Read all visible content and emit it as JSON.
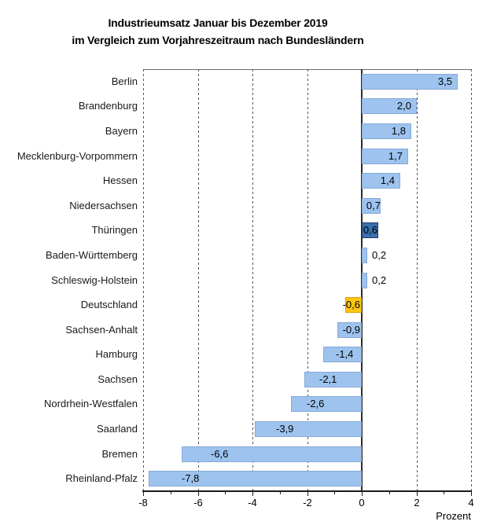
{
  "title": {
    "line1": "Industrieumsatz Januar bis Dezember 2019",
    "line2": "im Vergleich zum Vorjahreszeitraum nach Bundesländern"
  },
  "chart_data": {
    "type": "bar",
    "orientation": "horizontal",
    "title": "Industrieumsatz Januar bis Dezember 2019 im Vergleich zum Vorjahreszeitraum nach Bundesländern",
    "xlabel": "Prozent",
    "xlim": [
      -8,
      4
    ],
    "xticks": [
      -8,
      -6,
      -4,
      -2,
      0,
      2,
      4
    ],
    "xtick_labels": [
      "-8",
      "-6",
      "-4",
      "-2",
      "0",
      "2",
      "4"
    ],
    "minor_xticks": [
      -7,
      -5,
      -3,
      -1,
      1,
      3
    ],
    "grid": "vertical dashed lines at major ticks, solid vertical line at zero",
    "legend": "none",
    "categories": [
      "Berlin",
      "Brandenburg",
      "Bayern",
      "Mecklenburg-Vorpommern",
      "Hessen",
      "Niedersachsen",
      "Thüringen",
      "Baden-Württemberg",
      "Schleswig-Holstein",
      "Deutschland",
      "Sachsen-Anhalt",
      "Hamburg",
      "Sachsen",
      "Nordrhein-Westfalen",
      "Saarland",
      "Bremen",
      "Rheinland-Pfalz"
    ],
    "values": [
      3.5,
      2.0,
      1.8,
      1.7,
      1.4,
      0.7,
      0.6,
      0.2,
      0.2,
      -0.6,
      -0.9,
      -1.4,
      -2.1,
      -2.6,
      -3.9,
      -6.6,
      -7.8
    ],
    "value_labels": [
      "3,5",
      "2,0",
      "1,8",
      "1,7",
      "1,4",
      "0,7",
      "0,6",
      "0,2",
      "0,2",
      "-0,6",
      "-0,9",
      "-1,4",
      "-2,1",
      "-2,6",
      "-3,9",
      "-6,6",
      "-7,8"
    ],
    "color_roles": [
      "default",
      "default",
      "default",
      "default",
      "default",
      "default",
      "dark",
      "default",
      "default",
      "yellow",
      "default",
      "default",
      "default",
      "default",
      "default",
      "default",
      "default"
    ]
  },
  "colors": {
    "bar_fill": "#9DC3EE",
    "bar_border": "#86A9D9",
    "highlight_dark_fill": "#3A70AC",
    "highlight_dark_border": "#1F3E66",
    "highlight_yellow_fill": "#FFC612",
    "highlight_yellow_border": "#DD9F00",
    "gridline": "#555555",
    "zero_line": "#2B2B2B",
    "axis": "#1A1A1A",
    "text": "#1A1A1A"
  }
}
